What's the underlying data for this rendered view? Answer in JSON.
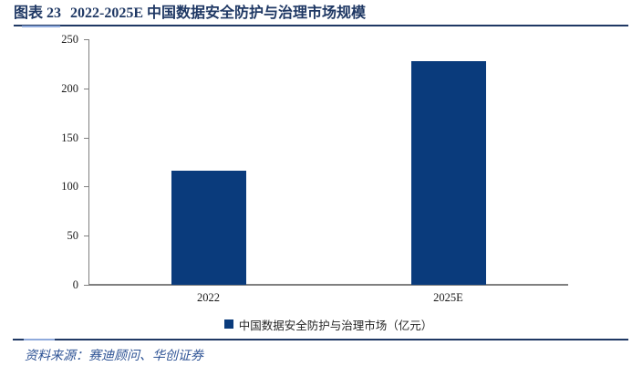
{
  "figure": {
    "label": "图表 23",
    "title": "2022-2025E 中国数据安全防护与治理市场规模",
    "source_prefix": "资料来源：",
    "source_text": "赛迪顾问、华创证券"
  },
  "chart_data": {
    "type": "bar",
    "title": "2022-2025E 中国数据安全防护与治理市场规模",
    "categories": [
      "2022",
      "2025E"
    ],
    "series": [
      {
        "name": "中国数据安全防护与治理市场（亿元）",
        "values": [
          116,
          228
        ]
      }
    ],
    "legend_label": "中国数据安全防护与治理市场（亿元）",
    "ylim": [
      0,
      250
    ],
    "ytick_step": 50,
    "grid": false,
    "legend_position": "bottom"
  },
  "colors": {
    "bar": "#0A3B7C",
    "title_navy": "#1F3864",
    "rule_navy": "#1F3864",
    "rule_accent": "#8FAADC",
    "source_blue": "#2E5395",
    "axis_gray": "#808080",
    "tick_text": "#1A1A1A",
    "legend_text": "#262626"
  }
}
